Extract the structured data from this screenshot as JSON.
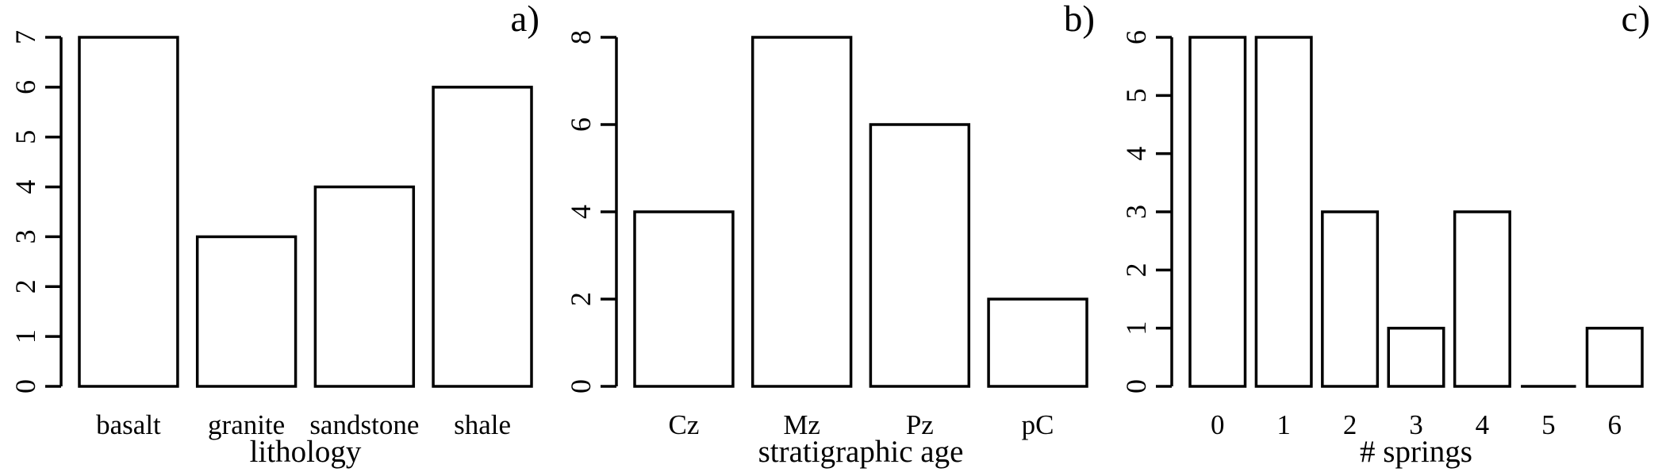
{
  "page": {
    "background": "#ffffff",
    "foreground": "#000000"
  },
  "chart_data": [
    {
      "type": "bar",
      "panel_label": "a)",
      "title": "",
      "xlabel": "lithology",
      "ylabel": "",
      "categories": [
        "basalt",
        "granite",
        "sandstone",
        "shale"
      ],
      "values": [
        7,
        3,
        4,
        6
      ],
      "ylim": [
        0,
        7
      ],
      "yticks": [
        0,
        1,
        2,
        3,
        4,
        5,
        6,
        7
      ],
      "grid": false,
      "legend": "none",
      "bar_fill": "#ffffff",
      "bar_stroke": "#000000"
    },
    {
      "type": "bar",
      "panel_label": "b)",
      "title": "",
      "xlabel": "stratigraphic age",
      "ylabel": "",
      "categories": [
        "Cz",
        "Mz",
        "Pz",
        "pC"
      ],
      "values": [
        4,
        8,
        6,
        2
      ],
      "ylim": [
        0,
        8
      ],
      "yticks": [
        0,
        2,
        4,
        6,
        8
      ],
      "grid": false,
      "legend": "none",
      "bar_fill": "#ffffff",
      "bar_stroke": "#000000"
    },
    {
      "type": "bar",
      "panel_label": "c)",
      "title": "",
      "xlabel": "# springs",
      "ylabel": "",
      "categories": [
        "0",
        "1",
        "2",
        "3",
        "4",
        "5",
        "6"
      ],
      "values": [
        6,
        6,
        3,
        1,
        3,
        0,
        1
      ],
      "ylim": [
        0,
        6
      ],
      "yticks": [
        0,
        1,
        2,
        3,
        4,
        5,
        6
      ],
      "grid": false,
      "legend": "none",
      "bar_fill": "#ffffff",
      "bar_stroke": "#000000"
    }
  ]
}
